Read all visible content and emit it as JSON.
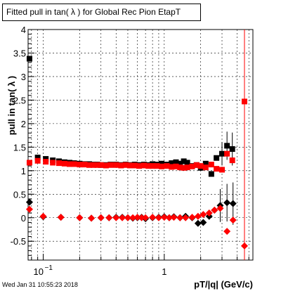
{
  "title": "Fitted pull in tan( λ ) for Global Rec Pion EtapT",
  "timestamp": "Wed Jan 31 10:55:23 2018",
  "chart_data": {
    "type": "scatter",
    "title": "Fitted pull in tan( λ ) for Global Rec Pion EtapT",
    "xlabel": "pT/|q| (GeV/c)",
    "ylabel": "pull in tan( λ )",
    "xscale": "log",
    "xlim": [
      0.075,
      5.4
    ],
    "ylim": [
      -0.9,
      4.0
    ],
    "grid": true,
    "x_tick_labels": [
      "10^-1",
      "1"
    ],
    "y_ticks": [
      -0.5,
      0,
      0.5,
      1,
      1.5,
      2,
      2.5,
      3,
      3.5,
      4
    ],
    "y_tick_labels": [
      "-0.5",
      "0",
      "0.5",
      "1",
      "1.5",
      "2",
      "2.5",
      "3",
      "3.5",
      "4"
    ],
    "colors": {
      "black_series": "#000000",
      "red_series": "#ff0000"
    },
    "series": [
      {
        "marker": "square",
        "color": "#000000",
        "points": [
          [
            0.077,
            3.38
          ],
          [
            0.09,
            1.28
          ],
          [
            0.105,
            1.25
          ],
          [
            0.12,
            1.22
          ],
          [
            0.135,
            1.2
          ],
          [
            0.15,
            1.18
          ],
          [
            0.165,
            1.17
          ],
          [
            0.18,
            1.16
          ],
          [
            0.2,
            1.15
          ],
          [
            0.22,
            1.14
          ],
          [
            0.24,
            1.14
          ],
          [
            0.26,
            1.13
          ],
          [
            0.28,
            1.13
          ],
          [
            0.3,
            1.12
          ],
          [
            0.33,
            1.12
          ],
          [
            0.36,
            1.13
          ],
          [
            0.4,
            1.13
          ],
          [
            0.44,
            1.12
          ],
          [
            0.48,
            1.13
          ],
          [
            0.52,
            1.12
          ],
          [
            0.57,
            1.13
          ],
          [
            0.62,
            1.12
          ],
          [
            0.68,
            1.13
          ],
          [
            0.74,
            1.12
          ],
          [
            0.8,
            1.14
          ],
          [
            0.87,
            1.13
          ],
          [
            0.95,
            1.15
          ],
          [
            1.05,
            1.13
          ],
          [
            1.15,
            1.16
          ],
          [
            1.25,
            1.18
          ],
          [
            1.35,
            1.15
          ],
          [
            1.45,
            1.2
          ],
          [
            1.55,
            1.17
          ],
          [
            1.7,
            1.1
          ],
          [
            1.85,
            1.12
          ],
          [
            2.0,
            1.06
          ],
          [
            2.2,
            1.15
          ],
          [
            2.45,
            0.93
          ],
          [
            2.7,
            1.27
          ],
          [
            3.0,
            1.36
          ],
          [
            3.3,
            1.53
          ],
          [
            3.65,
            1.46
          ]
        ],
        "error_points": [
          [
            3.0,
            1.36,
            0.25
          ],
          [
            3.3,
            1.53,
            0.3
          ],
          [
            3.65,
            1.46,
            0.35
          ]
        ]
      },
      {
        "marker": "diamond",
        "color": "#000000",
        "points": [
          [
            0.077,
            0.33
          ],
          [
            0.1,
            0.02
          ],
          [
            0.14,
            0.01
          ],
          [
            0.2,
            0.0
          ],
          [
            0.25,
            -0.01
          ],
          [
            0.3,
            0.0
          ],
          [
            0.35,
            0.0
          ],
          [
            0.4,
            0.01
          ],
          [
            0.45,
            0.01
          ],
          [
            0.5,
            0.0
          ],
          [
            0.55,
            -0.01
          ],
          [
            0.6,
            0.0
          ],
          [
            0.65,
            0.01
          ],
          [
            0.7,
            -0.02
          ],
          [
            0.8,
            0.0
          ],
          [
            0.9,
            0.01
          ],
          [
            1.0,
            0.02
          ],
          [
            1.1,
            0.0
          ],
          [
            1.2,
            0.02
          ],
          [
            1.35,
            0.0
          ],
          [
            1.5,
            0.03
          ],
          [
            1.7,
            0.0
          ],
          [
            1.9,
            -0.12
          ],
          [
            2.1,
            -0.1
          ],
          [
            2.35,
            0.03
          ],
          [
            2.6,
            0.16
          ],
          [
            2.9,
            0.26
          ],
          [
            3.3,
            0.32
          ],
          [
            3.7,
            0.3
          ]
        ],
        "error_points": [
          [
            2.9,
            0.26,
            0.35
          ],
          [
            3.3,
            0.32,
            0.4
          ],
          [
            3.7,
            0.3,
            0.45
          ]
        ]
      },
      {
        "marker": "square",
        "color": "#ff0000",
        "points": [
          [
            0.077,
            1.17
          ],
          [
            0.09,
            1.21
          ],
          [
            0.105,
            1.19
          ],
          [
            0.12,
            1.17
          ],
          [
            0.135,
            1.16
          ],
          [
            0.15,
            1.15
          ],
          [
            0.165,
            1.14
          ],
          [
            0.18,
            1.14
          ],
          [
            0.2,
            1.13
          ],
          [
            0.22,
            1.13
          ],
          [
            0.24,
            1.12
          ],
          [
            0.26,
            1.12
          ],
          [
            0.28,
            1.12
          ],
          [
            0.3,
            1.12
          ],
          [
            0.33,
            1.11
          ],
          [
            0.36,
            1.12
          ],
          [
            0.4,
            1.12
          ],
          [
            0.44,
            1.11
          ],
          [
            0.48,
            1.12
          ],
          [
            0.52,
            1.11
          ],
          [
            0.57,
            1.11
          ],
          [
            0.62,
            1.1
          ],
          [
            0.68,
            1.11
          ],
          [
            0.74,
            1.1
          ],
          [
            0.8,
            1.1
          ],
          [
            0.87,
            1.1
          ],
          [
            0.95,
            1.09
          ],
          [
            1.05,
            1.1
          ],
          [
            1.15,
            1.08
          ],
          [
            1.25,
            1.09
          ],
          [
            1.35,
            1.07
          ],
          [
            1.45,
            1.06
          ],
          [
            1.55,
            1.07
          ],
          [
            1.7,
            1.09
          ],
          [
            1.85,
            1.12
          ],
          [
            2.0,
            1.1
          ],
          [
            2.2,
            1.07
          ],
          [
            2.45,
            1.13
          ],
          [
            2.7,
            1.04
          ],
          [
            3.0,
            1.02
          ],
          [
            3.3,
            1.36
          ],
          [
            3.65,
            1.22
          ],
          [
            4.6,
            2.47
          ]
        ]
      },
      {
        "marker": "diamond",
        "color": "#ff0000",
        "points": [
          [
            0.077,
            0.18
          ],
          [
            0.1,
            0.03
          ],
          [
            0.14,
            0.01
          ],
          [
            0.2,
            0.0
          ],
          [
            0.25,
            -0.01
          ],
          [
            0.3,
            0.0
          ],
          [
            0.35,
            0.0
          ],
          [
            0.4,
            0.0
          ],
          [
            0.45,
            0.0
          ],
          [
            0.5,
            0.0
          ],
          [
            0.55,
            0.0
          ],
          [
            0.6,
            0.01
          ],
          [
            0.65,
            0.0
          ],
          [
            0.7,
            0.0
          ],
          [
            0.8,
            0.01
          ],
          [
            0.9,
            0.0
          ],
          [
            1.0,
            0.01
          ],
          [
            1.1,
            0.0
          ],
          [
            1.2,
            0.01
          ],
          [
            1.35,
            0.0
          ],
          [
            1.5,
            0.0
          ],
          [
            1.7,
            0.01
          ],
          [
            1.9,
            0.03
          ],
          [
            2.1,
            0.07
          ],
          [
            2.35,
            0.1
          ],
          [
            2.6,
            0.16
          ],
          [
            2.9,
            0.2
          ],
          [
            3.3,
            -0.29
          ],
          [
            3.7,
            -0.05
          ],
          [
            4.6,
            -0.6
          ]
        ]
      }
    ],
    "red_error_bar": [
      4.6,
      -0.6,
      2.47
    ]
  }
}
